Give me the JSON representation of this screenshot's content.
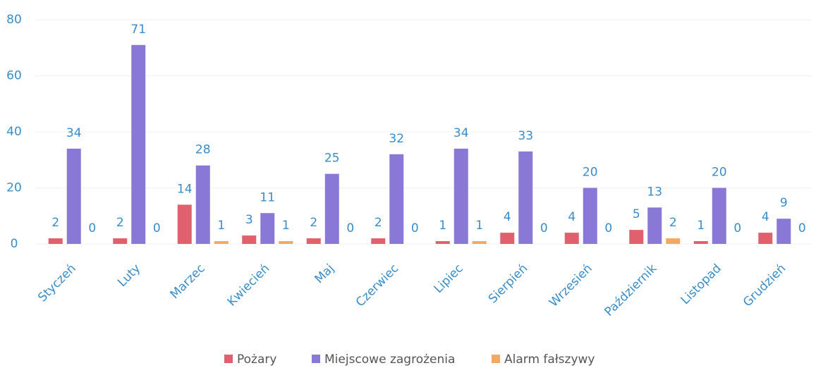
{
  "chart_data": {
    "type": "bar",
    "categories": [
      "Styczeń",
      "Luty",
      "Marzec",
      "Kwiecień",
      "Maj",
      "Czerwiec",
      "Lipiec",
      "Sierpień",
      "Wrzesień",
      "Październik",
      "Listopad",
      "Grudzień"
    ],
    "series": [
      {
        "name": "Pożary",
        "color": "#e0606e",
        "values": [
          2,
          2,
          14,
          3,
          2,
          2,
          1,
          4,
          4,
          5,
          1,
          4
        ]
      },
      {
        "name": "Miejscowe zagrożenia",
        "color": "#8a78d6",
        "values": [
          34,
          71,
          28,
          11,
          25,
          32,
          34,
          33,
          20,
          13,
          20,
          9
        ]
      },
      {
        "name": "Alarm fałszywy",
        "color": "#f4a862",
        "values": [
          0,
          0,
          1,
          1,
          0,
          0,
          1,
          0,
          0,
          2,
          0,
          0
        ]
      }
    ],
    "ylim": [
      0,
      80
    ],
    "yticks": [
      0,
      20,
      40,
      60,
      80
    ],
    "grid": true,
    "legend": "bottom"
  }
}
